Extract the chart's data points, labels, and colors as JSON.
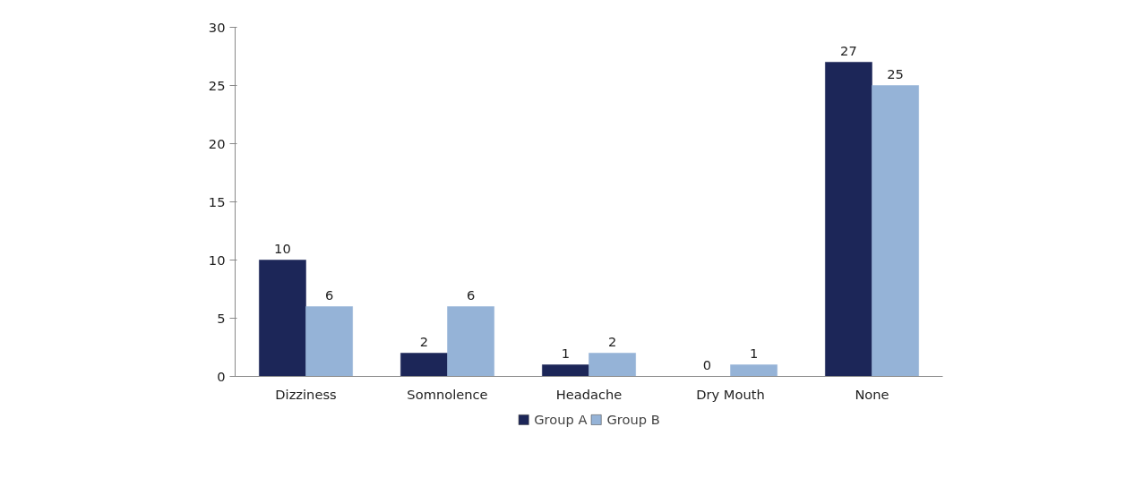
{
  "chart_data": {
    "type": "bar",
    "categories": [
      "Dizziness",
      "Somnolence",
      "Headache",
      "Dry Mouth",
      "None"
    ],
    "series": [
      {
        "name": "Group A",
        "color": "#1c2658",
        "values": [
          10,
          2,
          1,
          0,
          27
        ]
      },
      {
        "name": "Group B",
        "color": "#95b3d7",
        "values": [
          6,
          6,
          2,
          1,
          25
        ]
      }
    ],
    "ylim": [
      0,
      30
    ],
    "yticks": [
      0,
      5,
      10,
      15,
      20,
      25,
      30
    ],
    "grid": false,
    "legend": "bottom",
    "data_labels": true
  }
}
